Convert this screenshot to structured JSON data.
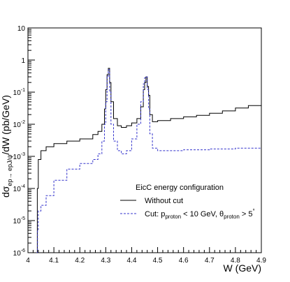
{
  "chart_data": {
    "type": "line",
    "xlabel": "W (GeV)",
    "ylabel_parts": {
      "main": "dσ",
      "subscript": "ep→ epJ/ψ",
      "suffix": "/dW (pb/GeV)"
    },
    "xlim": [
      4.0,
      4.9
    ],
    "ylim": [
      1e-06,
      10
    ],
    "y_scale": "log",
    "x_ticks": [
      "4",
      "4.1",
      "4.2",
      "4.3",
      "4.4",
      "4.5",
      "4.6",
      "4.7",
      "4.8",
      "4.9"
    ],
    "y_tick_labels": [
      {
        "base": "10",
        "exp": "-6"
      },
      {
        "base": "10",
        "exp": "-5"
      },
      {
        "base": "10",
        "exp": "-4"
      },
      {
        "base": "10",
        "exp": "-3"
      },
      {
        "base": "10",
        "exp": "-2"
      },
      {
        "base": "10",
        "exp": "-1"
      },
      {
        "base": "1",
        "exp": ""
      },
      {
        "base": "10",
        "exp": ""
      }
    ],
    "legend": {
      "header": "EicC energy configuration",
      "position": "bottom-right"
    },
    "series": [
      {
        "name": "Without cut",
        "color": "#000000",
        "style": "solid",
        "x": [
          4.033,
          4.036,
          4.04,
          4.05,
          4.07,
          4.1,
          4.15,
          4.2,
          4.25,
          4.27,
          4.285,
          4.295,
          4.3,
          4.305,
          4.31,
          4.315,
          4.32,
          4.33,
          4.345,
          4.36,
          4.38,
          4.4,
          4.42,
          4.435,
          4.445,
          4.45,
          4.455,
          4.46,
          4.465,
          4.47,
          4.48,
          4.49,
          4.5,
          4.55,
          4.6,
          4.65,
          4.7,
          4.75,
          4.8,
          4.85,
          4.9
        ],
        "y": [
          1e-06,
          0.0001,
          0.0008,
          0.0015,
          0.002,
          0.0025,
          0.003,
          0.0035,
          0.0048,
          0.006,
          0.01,
          0.03,
          0.12,
          0.35,
          0.55,
          0.2,
          0.05,
          0.015,
          0.009,
          0.008,
          0.009,
          0.011,
          0.015,
          0.035,
          0.12,
          0.2,
          0.3,
          0.15,
          0.08,
          0.02,
          0.012,
          0.012,
          0.013,
          0.015,
          0.017,
          0.019,
          0.022,
          0.026,
          0.032,
          0.038,
          0.045
        ]
      },
      {
        "name_parts": {
          "prefix": "Cut: p",
          "sub1": "proton",
          "mid": " < 10 GeV, θ",
          "sub2": "proton",
          "end": " > 5",
          "sup": "°"
        },
        "color": "#3333cc",
        "style": "dashed",
        "x": [
          4.033,
          4.037,
          4.04,
          4.05,
          4.07,
          4.1,
          4.15,
          4.2,
          4.25,
          4.27,
          4.285,
          4.295,
          4.3,
          4.305,
          4.31,
          4.315,
          4.32,
          4.33,
          4.345,
          4.36,
          4.38,
          4.4,
          4.42,
          4.435,
          4.445,
          4.45,
          4.455,
          4.46,
          4.465,
          4.47,
          4.48,
          4.5,
          4.55,
          4.6,
          4.65,
          4.7,
          4.75,
          4.8,
          4.9
        ],
        "y": [
          1e-06,
          5e-06,
          2e-05,
          3e-05,
          6e-05,
          0.00018,
          0.0004,
          0.0006,
          0.0008,
          0.0012,
          0.003,
          0.01,
          0.05,
          0.3,
          0.5,
          0.1,
          0.01,
          0.003,
          0.0015,
          0.0012,
          0.0015,
          0.0035,
          0.01,
          0.05,
          0.18,
          0.28,
          0.3,
          0.12,
          0.03,
          0.005,
          0.0018,
          0.0015,
          0.0015,
          0.0016,
          0.0016,
          0.0017,
          0.0017,
          0.0018,
          0.0018
        ]
      }
    ]
  }
}
